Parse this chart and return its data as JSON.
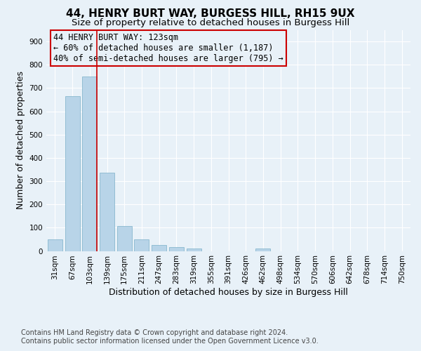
{
  "title": "44, HENRY BURT WAY, BURGESS HILL, RH15 9UX",
  "subtitle": "Size of property relative to detached houses in Burgess Hill",
  "xlabel": "Distribution of detached houses by size in Burgess Hill",
  "ylabel": "Number of detached properties",
  "categories": [
    "31sqm",
    "67sqm",
    "103sqm",
    "139sqm",
    "175sqm",
    "211sqm",
    "247sqm",
    "283sqm",
    "319sqm",
    "355sqm",
    "391sqm",
    "426sqm",
    "462sqm",
    "498sqm",
    "534sqm",
    "570sqm",
    "606sqm",
    "642sqm",
    "678sqm",
    "714sqm",
    "750sqm"
  ],
  "values": [
    50,
    665,
    750,
    335,
    107,
    50,
    25,
    17,
    12,
    0,
    0,
    0,
    10,
    0,
    0,
    0,
    0,
    0,
    0,
    0,
    0
  ],
  "bar_color": "#b8d4e8",
  "bar_edge_color": "#7aafc8",
  "red_line_color": "#cc0000",
  "annotation_box_text": "44 HENRY BURT WAY: 123sqm\n← 60% of detached houses are smaller (1,187)\n40% of semi-detached houses are larger (795) →",
  "annotation_box_edge_color": "#cc0000",
  "footnote": "Contains HM Land Registry data © Crown copyright and database right 2024.\nContains public sector information licensed under the Open Government Licence v3.0.",
  "ylim": [
    0,
    950
  ],
  "yticks": [
    0,
    100,
    200,
    300,
    400,
    500,
    600,
    700,
    800,
    900
  ],
  "bg_color": "#e8f1f8",
  "grid_color": "#ffffff",
  "title_fontsize": 11,
  "subtitle_fontsize": 9.5,
  "axis_label_fontsize": 9,
  "tick_fontsize": 7.5,
  "footnote_fontsize": 7,
  "annotation_fontsize": 8.5
}
